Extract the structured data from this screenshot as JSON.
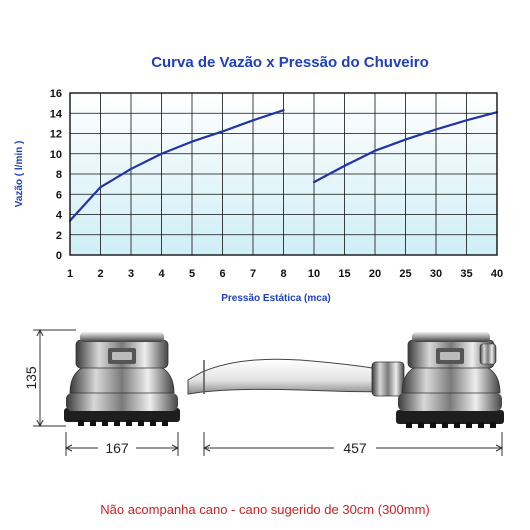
{
  "chart_data": {
    "type": "line",
    "title": "Curva de Vazão x Pressão do Chuveiro",
    "xlabel": "Pressão Estática (mca)",
    "ylabel": "Vazão  ( l/min )",
    "ylim": [
      0,
      16
    ],
    "y_ticks": [
      "0",
      "2",
      "4",
      "6",
      "8",
      "10",
      "12",
      "14",
      "16"
    ],
    "x_ticks": [
      "1",
      "2",
      "3",
      "4",
      "5",
      "6",
      "7",
      "8",
      "10",
      "15",
      "20",
      "25",
      "30",
      "35",
      "40"
    ],
    "grid": true,
    "series": [
      {
        "segment": "low_pressure",
        "x": [
          1,
          2,
          3,
          4,
          5,
          6,
          7,
          8
        ],
        "values": [
          3.4,
          6.7,
          8.5,
          10.0,
          11.2,
          12.2,
          13.3,
          14.3
        ]
      },
      {
        "segment": "high_pressure",
        "x": [
          10,
          15,
          20,
          25,
          30,
          35,
          40
        ],
        "values": [
          7.2,
          8.8,
          10.3,
          11.4,
          12.4,
          13.3,
          14.1
        ]
      }
    ],
    "colors": {
      "title": "#1f3fbf",
      "line": "#2233aa",
      "grid": "#111111",
      "plot_bg_top": "#ffffff",
      "plot_bg_bottom": "#cfeef6"
    }
  },
  "dimensions": {
    "height_label": "135",
    "width_label": "167",
    "length_label": "457"
  },
  "footer": {
    "note": "Não acompanha cano - cano sugerido de 30cm (300mm)",
    "color": "#cc2222"
  }
}
